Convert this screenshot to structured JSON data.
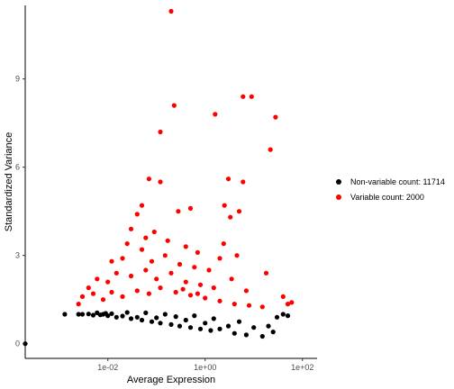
{
  "chart_data": {
    "type": "scatter",
    "title": "",
    "xlabel": "Average Expression",
    "ylabel": "Standardized Variance",
    "x_scale": "log10",
    "xlim": [
      0.0002,
      200
    ],
    "ylim": [
      -0.5,
      11.5
    ],
    "x_ticks": [
      {
        "value": 0.01,
        "label": "1e-02"
      },
      {
        "value": 1,
        "label": "1e+00"
      },
      {
        "value": 100,
        "label": "1e+02"
      }
    ],
    "y_ticks": [
      {
        "value": 0,
        "label": "0"
      },
      {
        "value": 3,
        "label": "3"
      },
      {
        "value": 6,
        "label": "6"
      },
      {
        "value": 9,
        "label": "9"
      }
    ],
    "grid": false,
    "legend_position": "right",
    "series": [
      {
        "name": "Non-variable count: 11714",
        "color": "#000000",
        "points": [
          [
            0.0002,
            0.0
          ],
          [
            0.0013,
            1.0
          ],
          [
            0.0025,
            1.0
          ],
          [
            0.003,
            1.0
          ],
          [
            0.004,
            1.01
          ],
          [
            0.005,
            0.97
          ],
          [
            0.006,
            1.05
          ],
          [
            0.007,
            0.98
          ],
          [
            0.008,
            1.0
          ],
          [
            0.009,
            1.03
          ],
          [
            0.01,
            0.95
          ],
          [
            0.012,
            1.02
          ],
          [
            0.015,
            0.9
          ],
          [
            0.02,
            0.94
          ],
          [
            0.025,
            1.06
          ],
          [
            0.03,
            0.85
          ],
          [
            0.04,
            0.9
          ],
          [
            0.05,
            0.8
          ],
          [
            0.06,
            1.05
          ],
          [
            0.08,
            0.75
          ],
          [
            0.1,
            0.88
          ],
          [
            0.12,
            0.7
          ],
          [
            0.15,
            1.0
          ],
          [
            0.2,
            0.65
          ],
          [
            0.25,
            0.92
          ],
          [
            0.3,
            0.6
          ],
          [
            0.4,
            0.8
          ],
          [
            0.5,
            0.55
          ],
          [
            0.6,
            0.95
          ],
          [
            0.8,
            0.5
          ],
          [
            1.0,
            0.7
          ],
          [
            1.3,
            0.45
          ],
          [
            1.5,
            0.85
          ],
          [
            2.0,
            0.5
          ],
          [
            3.0,
            0.6
          ],
          [
            4.0,
            0.35
          ],
          [
            5.0,
            0.75
          ],
          [
            7.0,
            0.3
          ],
          [
            10.0,
            0.55
          ],
          [
            15.0,
            0.25
          ],
          [
            20.0,
            0.6
          ],
          [
            25.0,
            0.4
          ],
          [
            30.0,
            0.9
          ],
          [
            40.0,
            1.0
          ],
          [
            50.0,
            0.95
          ]
        ]
      },
      {
        "name": "Variable count: 2000",
        "color": "#ff0000",
        "points": [
          [
            0.2,
            11.3
          ],
          [
            0.23,
            8.1
          ],
          [
            1.6,
            7.8
          ],
          [
            6.0,
            8.4
          ],
          [
            9.0,
            8.4
          ],
          [
            28.0,
            7.7
          ],
          [
            0.12,
            7.2
          ],
          [
            22.0,
            6.6
          ],
          [
            0.07,
            5.6
          ],
          [
            0.12,
            5.5
          ],
          [
            3.0,
            5.6
          ],
          [
            6.0,
            5.5
          ],
          [
            0.28,
            4.5
          ],
          [
            0.5,
            4.6
          ],
          [
            2.5,
            4.7
          ],
          [
            0.05,
            4.7
          ],
          [
            0.04,
            4.4
          ],
          [
            5.0,
            4.5
          ],
          [
            3.3,
            4.3
          ],
          [
            0.03,
            3.9
          ],
          [
            0.025,
            3.4
          ],
          [
            0.06,
            3.6
          ],
          [
            0.09,
            3.8
          ],
          [
            0.17,
            3.5
          ],
          [
            0.4,
            3.3
          ],
          [
            0.7,
            3.1
          ],
          [
            2.4,
            3.4
          ],
          [
            4.5,
            3.0
          ],
          [
            18.0,
            2.4
          ],
          [
            0.012,
            2.8
          ],
          [
            0.02,
            2.9
          ],
          [
            0.05,
            3.2
          ],
          [
            0.08,
            2.8
          ],
          [
            0.15,
            3.0
          ],
          [
            0.3,
            2.7
          ],
          [
            0.6,
            2.6
          ],
          [
            1.2,
            2.5
          ],
          [
            2.0,
            2.9
          ],
          [
            0.004,
            1.9
          ],
          [
            0.006,
            2.2
          ],
          [
            0.01,
            2.1
          ],
          [
            0.015,
            2.4
          ],
          [
            0.03,
            2.3
          ],
          [
            0.06,
            2.5
          ],
          [
            0.1,
            2.2
          ],
          [
            0.2,
            2.4
          ],
          [
            0.4,
            2.1
          ],
          [
            0.8,
            2.0
          ],
          [
            1.5,
            1.9
          ],
          [
            3.5,
            2.2
          ],
          [
            7.0,
            1.8
          ],
          [
            0.003,
            1.6
          ],
          [
            0.005,
            1.7
          ],
          [
            0.008,
            1.5
          ],
          [
            0.012,
            1.75
          ],
          [
            0.02,
            1.6
          ],
          [
            0.04,
            1.8
          ],
          [
            0.07,
            1.7
          ],
          [
            0.12,
            1.9
          ],
          [
            0.25,
            1.75
          ],
          [
            0.5,
            1.65
          ],
          [
            1.0,
            1.55
          ],
          [
            2.0,
            1.45
          ],
          [
            4.0,
            1.35
          ],
          [
            8.0,
            1.3
          ],
          [
            15.0,
            1.25
          ],
          [
            40.0,
            1.6
          ],
          [
            50.0,
            1.35
          ],
          [
            60.0,
            1.4
          ],
          [
            0.0025,
            1.35
          ],
          [
            0.35,
            1.85
          ],
          [
            0.7,
            1.7
          ]
        ]
      }
    ]
  }
}
